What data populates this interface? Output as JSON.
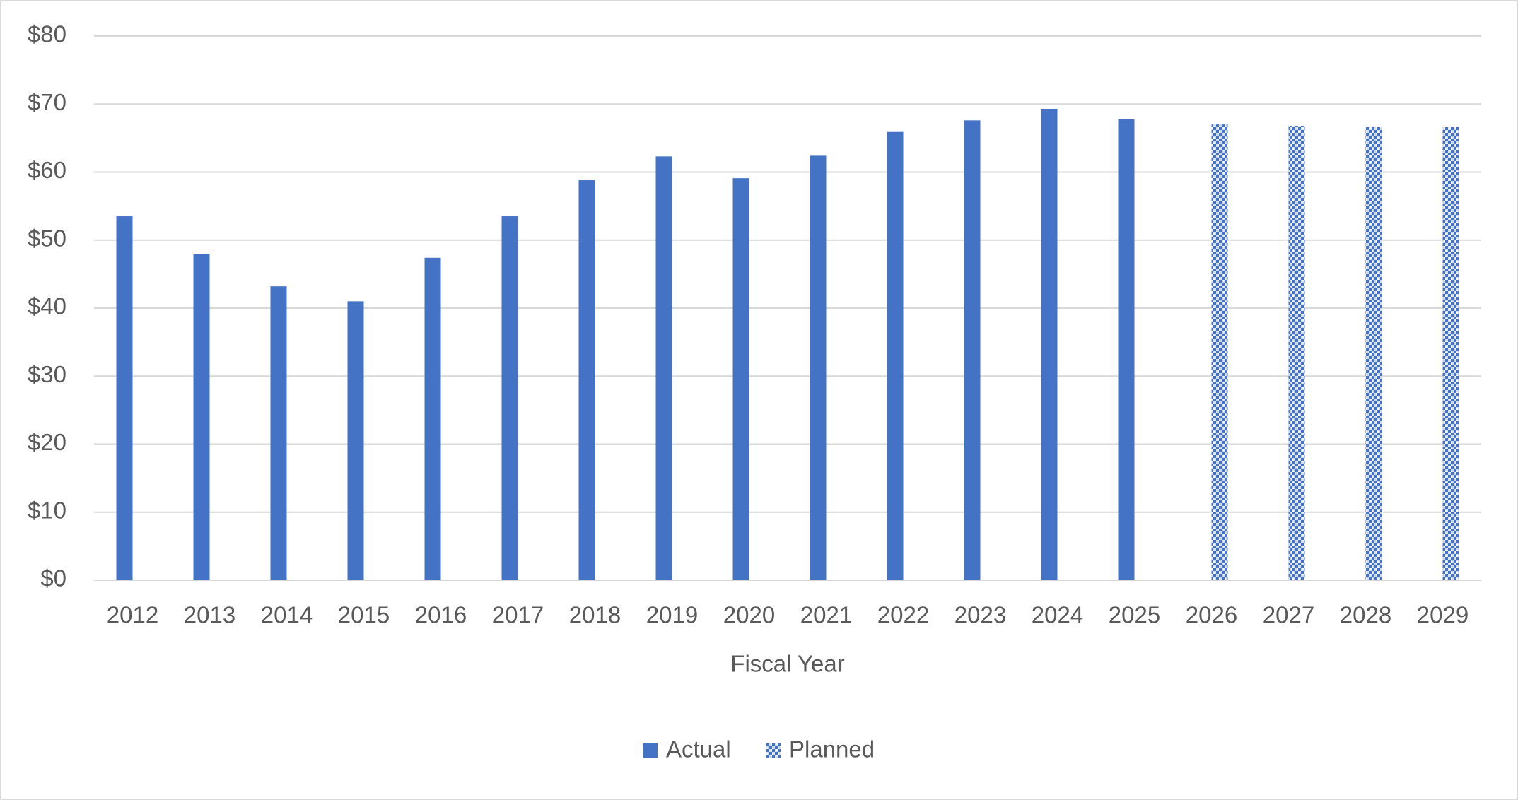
{
  "chart_data": {
    "type": "bar",
    "x_label": "Fiscal Year",
    "categories": [
      "2012",
      "2013",
      "2014",
      "2015",
      "2016",
      "2017",
      "2018",
      "2019",
      "2020",
      "2021",
      "2022",
      "2023",
      "2024",
      "2025",
      "2026",
      "2027",
      "2028",
      "2029"
    ],
    "series": [
      {
        "name": "Actual",
        "color": "#4472c4",
        "pattern": "solid",
        "values": [
          53.5,
          48,
          43.2,
          41,
          47.4,
          53.5,
          58.8,
          62.3,
          59.1,
          62.4,
          65.9,
          67.6,
          69.3,
          67.8,
          null,
          null,
          null,
          null
        ]
      },
      {
        "name": "Planned",
        "color": "#4472c4",
        "pattern": "checker",
        "values": [
          null,
          null,
          null,
          null,
          null,
          null,
          null,
          null,
          null,
          null,
          null,
          null,
          null,
          null,
          67,
          66.8,
          66.6,
          66.6
        ]
      }
    ],
    "ylim": [
      0,
      80
    ],
    "yticks": [
      {
        "value": 0,
        "label": "$0"
      },
      {
        "value": 10,
        "label": "$10"
      },
      {
        "value": 20,
        "label": "$20"
      },
      {
        "value": 30,
        "label": "$30"
      },
      {
        "value": 40,
        "label": "$40"
      },
      {
        "value": 50,
        "label": "$50"
      },
      {
        "value": 60,
        "label": "$60"
      },
      {
        "value": 70,
        "label": "$70"
      },
      {
        "value": 80,
        "label": "$80"
      }
    ],
    "grid": true,
    "legend": "bottom"
  }
}
